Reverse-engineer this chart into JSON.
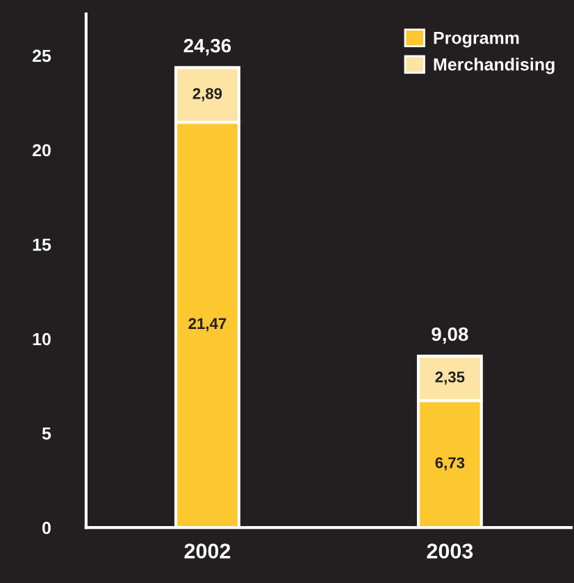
{
  "chart_data": {
    "type": "bar",
    "stacked": true,
    "categories": [
      "2002",
      "2003"
    ],
    "series": [
      {
        "name": "Programm",
        "color": "#fdc82f",
        "values": [
          21.47,
          6.73
        ],
        "value_labels": [
          "21,47",
          "6,73"
        ]
      },
      {
        "name": "Merchandising",
        "color": "#fde4a5",
        "values": [
          2.89,
          2.35
        ],
        "value_labels": [
          "2,89",
          "2,35"
        ]
      }
    ],
    "totals": [
      "24,36",
      "9,08"
    ],
    "ylim": [
      0,
      27.2
    ],
    "yticks": [
      0,
      5,
      10,
      15,
      20,
      25
    ],
    "grid": false,
    "legend": "top right"
  }
}
